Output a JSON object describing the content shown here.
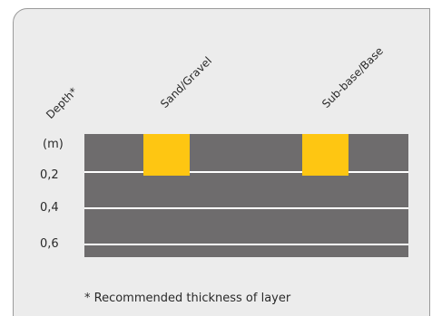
{
  "headers": {
    "depth": "Depth*",
    "sand_gravel": "Sand/Gravel",
    "subbase_base": "Sub-base/Base"
  },
  "axis": {
    "unit": "(m)",
    "ticks": [
      "0,2",
      "0,4",
      "0,6"
    ]
  },
  "footnote": "* Recommended thickness of layer",
  "colors": {
    "panel": "#ececec",
    "ground": "#6e6c6d",
    "block": "#fec612",
    "line": "#ffffff"
  }
}
